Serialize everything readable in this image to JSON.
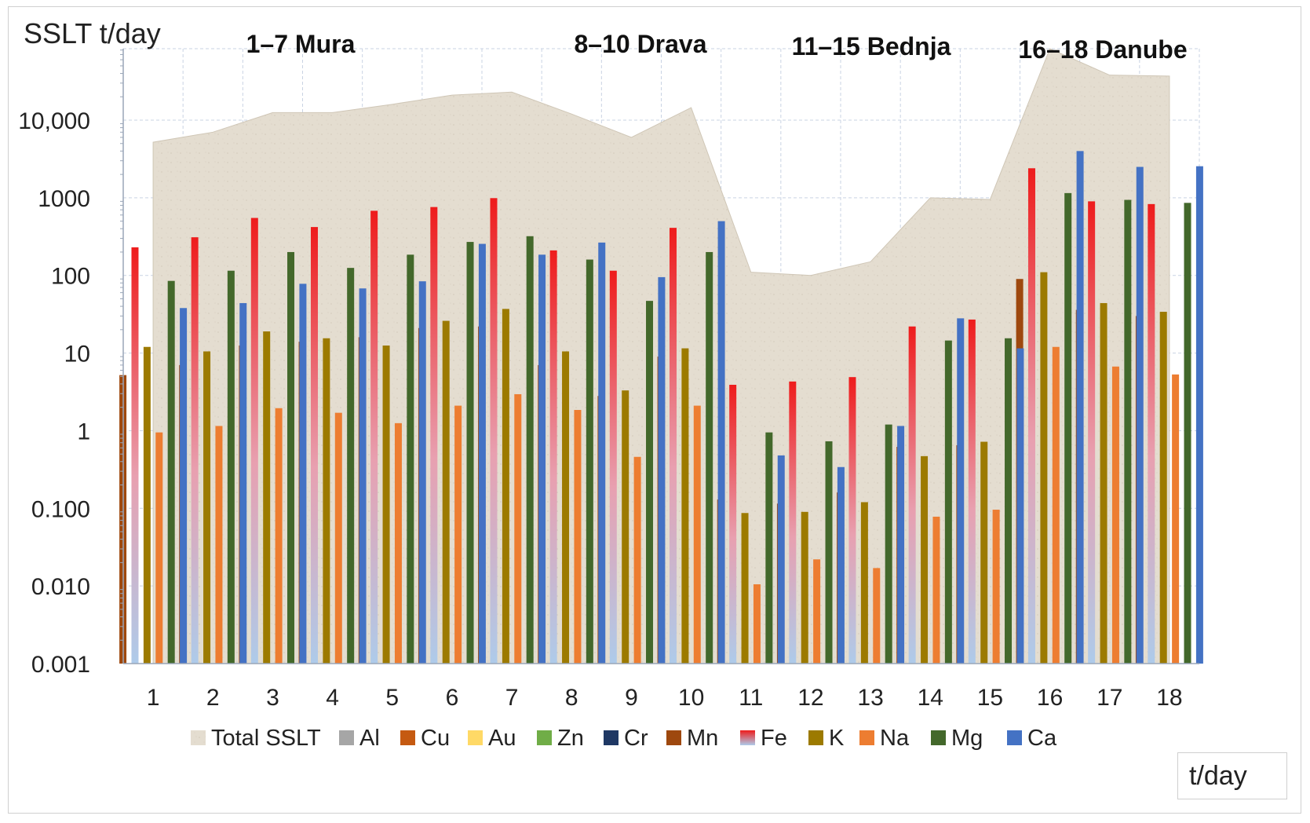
{
  "chart_data": {
    "type": "bar",
    "y_axis_title": "SSLT t/day",
    "y_scale": "log",
    "ylim": [
      0.001,
      100000
    ],
    "y_tick_labels": [
      "0.001",
      "0.010",
      "0.100",
      "1",
      "10",
      "100",
      "1000",
      "10,000"
    ],
    "y_tick_values": [
      0.001,
      0.01,
      0.1,
      1,
      10,
      100,
      1000,
      10000
    ],
    "categories": [
      "1",
      "2",
      "3",
      "4",
      "5",
      "6",
      "7",
      "8",
      "9",
      "10",
      "11",
      "12",
      "13",
      "14",
      "15",
      "16",
      "17",
      "18"
    ],
    "x_unit_label": "t/day",
    "grid": true,
    "legend_position": "bottom",
    "annotations": [
      {
        "text": "1–7 Mura",
        "category": "3"
      },
      {
        "text": "8–10 Drava",
        "category": "9"
      },
      {
        "text": "11–15 Bednja",
        "category": "13"
      },
      {
        "text": "16–18 Danube",
        "category": "17"
      }
    ],
    "area_series": {
      "name": "Total SSLT",
      "color": "#e4ddd0",
      "values": [
        5200,
        7000,
        12500,
        12500,
        16000,
        21000,
        23000,
        12000,
        6000,
        14500,
        110,
        100,
        150,
        1000,
        950,
        85000,
        38000,
        37000
      ]
    },
    "legend": [
      {
        "name": "Total SSLT",
        "color": "#e4ddd0"
      },
      {
        "name": "Al",
        "color": "#a6a6a6"
      },
      {
        "name": "Cu",
        "color": "#c55a11"
      },
      {
        "name": "Au",
        "color": "#ffd966"
      },
      {
        "name": "Zn",
        "color": "#70ad47"
      },
      {
        "name": "Cr",
        "color": "#1f3864"
      },
      {
        "name": "Mn",
        "color": "#9e480e"
      },
      {
        "name": "Fe",
        "color": "#ee2222"
      },
      {
        "name": "K",
        "color": "#9c7a00"
      },
      {
        "name": "Na",
        "color": "#ed7d31"
      },
      {
        "name": "Mg",
        "color": "#43682b"
      },
      {
        "name": "Ca",
        "color": "#4472c4"
      }
    ],
    "series": [
      {
        "name": "Mn",
        "color": "#9e480e",
        "values": [
          5.2,
          7,
          12.5,
          14,
          16,
          21,
          22,
          7,
          2.8,
          9,
          0.13,
          0.115,
          0.16,
          0.62,
          0.65,
          90,
          36,
          30
        ]
      },
      {
        "name": "Fe",
        "color": "#ee2222",
        "values": [
          230,
          310,
          550,
          420,
          680,
          760,
          990,
          210,
          115,
          410,
          3.9,
          4.3,
          4.9,
          22,
          27,
          2400,
          900,
          830
        ]
      },
      {
        "name": "K",
        "color": "#9c7a00",
        "values": [
          12,
          10.5,
          19,
          15.5,
          12.5,
          26,
          37,
          10.5,
          3.3,
          11.5,
          0.087,
          0.09,
          0.12,
          0.47,
          0.72,
          110,
          44,
          34
        ]
      },
      {
        "name": "Na",
        "color": "#ed7d31",
        "values": [
          0.95,
          1.15,
          1.95,
          1.7,
          1.25,
          2.1,
          2.95,
          1.85,
          0.46,
          2.1,
          0.0105,
          0.022,
          0.017,
          0.078,
          0.096,
          12,
          6.7,
          5.3
        ]
      },
      {
        "name": "Mg",
        "color": "#43682b",
        "values": [
          85,
          115,
          200,
          125,
          185,
          270,
          320,
          160,
          47,
          200,
          0.95,
          0.73,
          1.2,
          14.5,
          15.5,
          1150,
          940,
          860
        ]
      },
      {
        "name": "Ca",
        "color": "#4472c4",
        "values": [
          38,
          44,
          78,
          68,
          84,
          255,
          185,
          265,
          95,
          500,
          0.48,
          0.34,
          1.15,
          28,
          11.5,
          4000,
          2500,
          2550
        ]
      }
    ]
  }
}
